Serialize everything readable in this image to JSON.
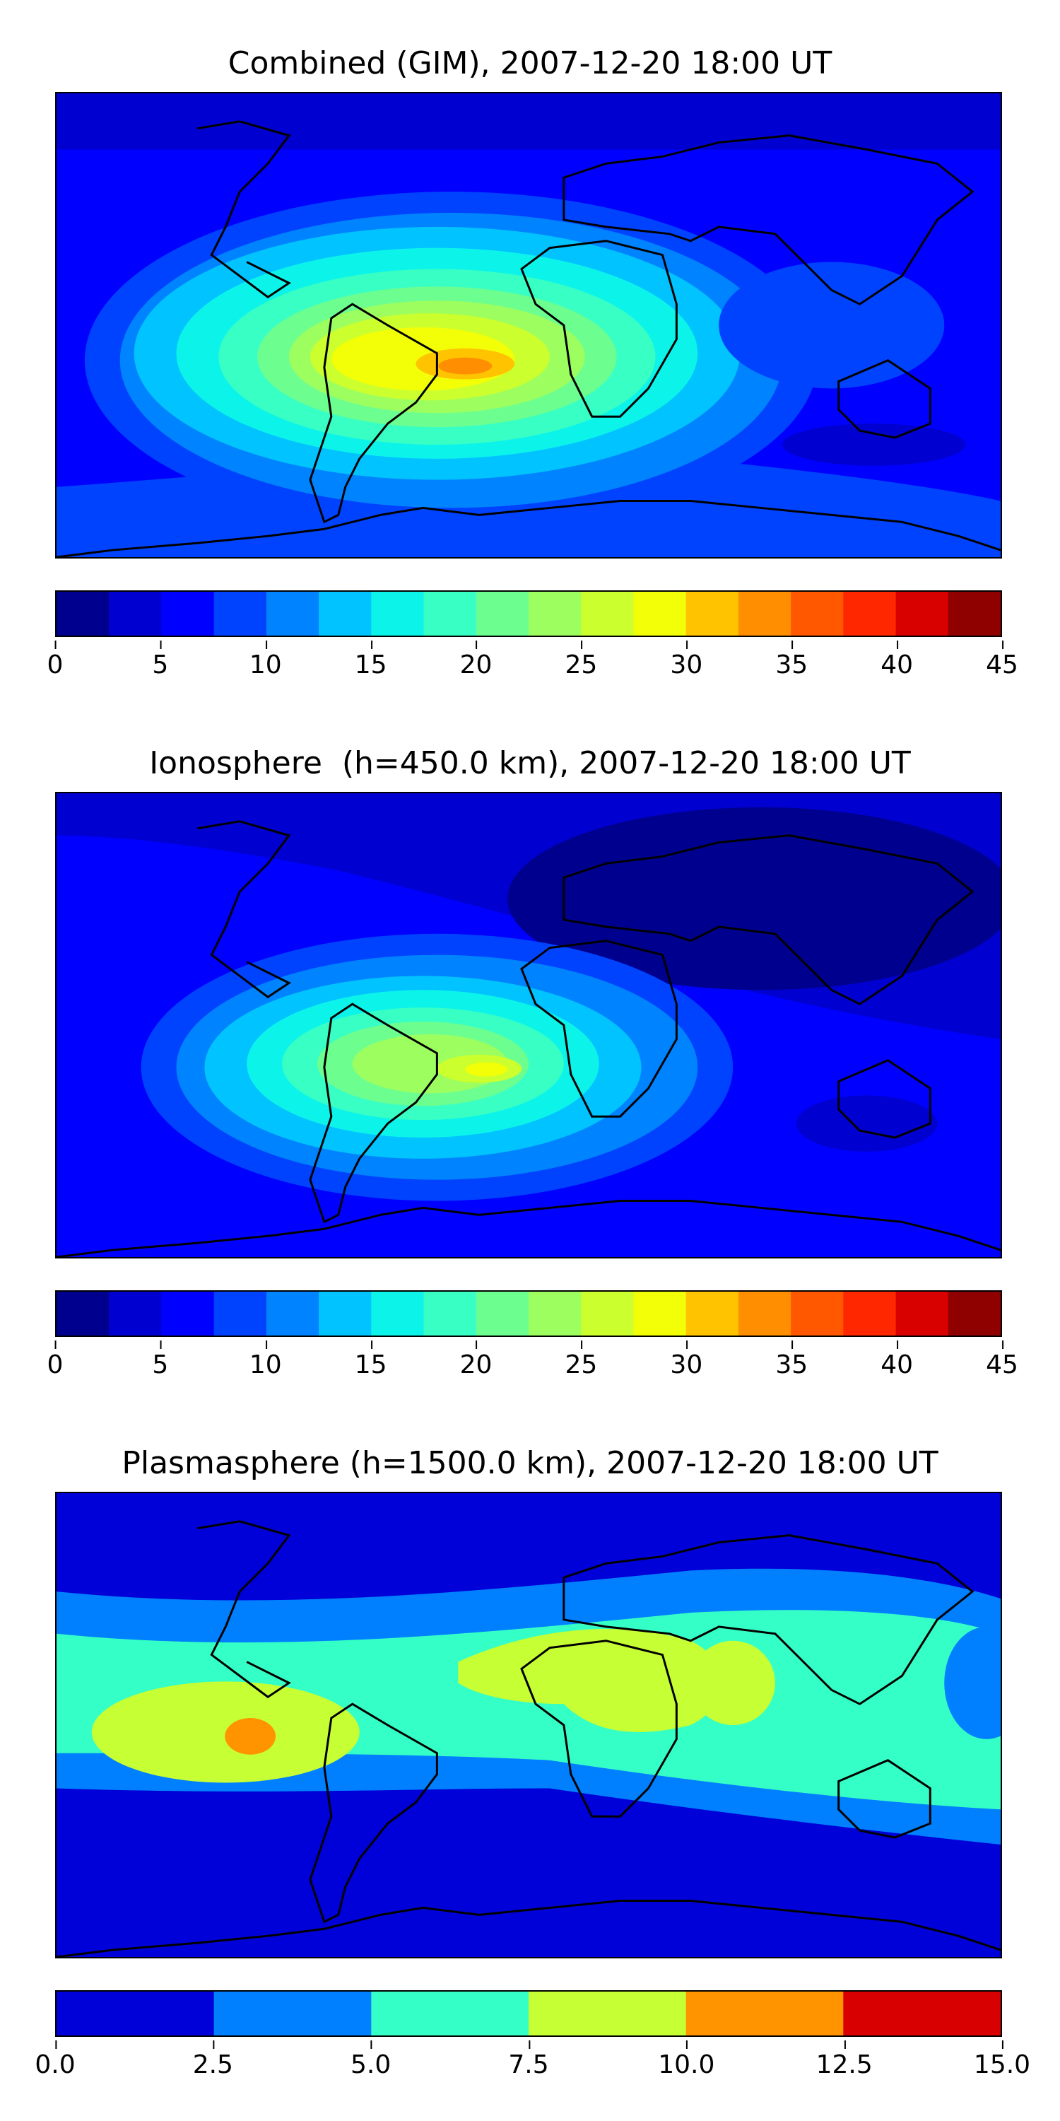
{
  "panels": [
    {
      "title": "Combined (GIM), 2007-12-20 18:00 UT",
      "colorbar": {
        "levels": [
          0,
          2.5,
          5,
          7.5,
          10,
          12.5,
          15,
          17.5,
          20,
          22.5,
          25,
          27.5,
          30,
          32.5,
          35,
          37.5,
          40,
          42.5,
          45
        ],
        "colors": [
          "#00008f",
          "#0000d0",
          "#0000ff",
          "#0043ff",
          "#0083ff",
          "#00c3ff",
          "#0cf4ea",
          "#38ffc3",
          "#6cff8f",
          "#9cff5f",
          "#cbff2e",
          "#f2ff07",
          "#ffc300",
          "#ff8f00",
          "#ff5800",
          "#ff2700",
          "#d90000",
          "#8f0000"
        ],
        "tick_labels": [
          "0",
          "5",
          "10",
          "15",
          "20",
          "25",
          "30",
          "35",
          "40",
          "45"
        ]
      }
    },
    {
      "title": "Ionosphere  (h=450.0 km), 2007-12-20 18:00 UT",
      "colorbar": {
        "levels": [
          0,
          2.5,
          5,
          7.5,
          10,
          12.5,
          15,
          17.5,
          20,
          22.5,
          25,
          27.5,
          30,
          32.5,
          35,
          37.5,
          40,
          42.5,
          45
        ],
        "colors": [
          "#00008f",
          "#0000d0",
          "#0000ff",
          "#0043ff",
          "#0083ff",
          "#00c3ff",
          "#0cf4ea",
          "#38ffc3",
          "#6cff8f",
          "#9cff5f",
          "#cbff2e",
          "#f2ff07",
          "#ffc300",
          "#ff8f00",
          "#ff5800",
          "#ff2700",
          "#d90000",
          "#8f0000"
        ],
        "tick_labels": [
          "0",
          "5",
          "10",
          "15",
          "20",
          "25",
          "30",
          "35",
          "40",
          "45"
        ]
      }
    },
    {
      "title": "Plasmasphere (h=1500.0 km), 2007-12-20 18:00 UT",
      "colorbar": {
        "levels": [
          0,
          2.5,
          5,
          7.5,
          10,
          12.5,
          15
        ],
        "colors": [
          "#0000d8",
          "#0080ff",
          "#34ffc6",
          "#c6ff34",
          "#ff9400",
          "#d80000"
        ],
        "tick_labels": [
          "0.0",
          "2.5",
          "5.0",
          "7.5",
          "10.0",
          "12.5",
          "15.0"
        ]
      }
    }
  ]
}
